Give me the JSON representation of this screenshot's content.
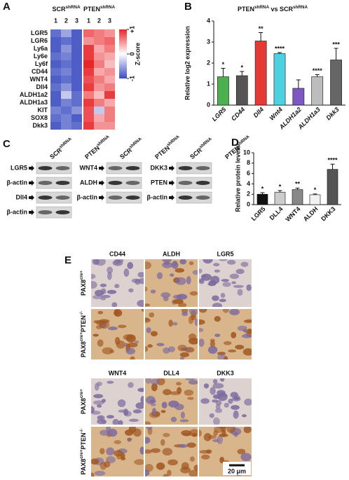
{
  "chart_data": [
    {
      "type": "heatmap",
      "panel": "A",
      "groups": [
        [
          {
            "text": "SCR"
          },
          {
            "text": "shRNA",
            "sup": true
          }
        ],
        [
          {
            "text": "PTEN"
          },
          {
            "text": "shRNA",
            "sup": true
          }
        ]
      ],
      "columns": [
        "1",
        "2",
        "3",
        "1",
        "2",
        "3"
      ],
      "rows": [
        "LGR5",
        "LGR6",
        "Ly6a",
        "Ly6e",
        "Ly6f",
        "CD44",
        "WNT4",
        "Dll4",
        "ALDH1a2",
        "ALDH1a3",
        "KIT",
        "SOX8",
        "Dkk3"
      ],
      "values": [
        [
          -0.8,
          -0.5,
          -0.9,
          0.7,
          0.6,
          0.5
        ],
        [
          -0.9,
          -0.8,
          -0.9,
          0.5,
          0.6,
          0.7
        ],
        [
          -0.9,
          -0.6,
          -0.9,
          0.9,
          0.4,
          0.6
        ],
        [
          -0.8,
          -0.7,
          -0.9,
          0.9,
          0.5,
          0.4
        ],
        [
          -0.9,
          -0.8,
          -0.9,
          1.0,
          0.6,
          0.3
        ],
        [
          -0.8,
          -0.7,
          -0.9,
          0.9,
          0.4,
          0.5
        ],
        [
          -0.9,
          -0.8,
          -0.9,
          0.8,
          0.6,
          0.4
        ],
        [
          -0.8,
          -0.6,
          -0.9,
          0.9,
          0.5,
          0.6
        ],
        [
          -0.9,
          -0.3,
          -0.8,
          0.6,
          0.3,
          0.9
        ],
        [
          -0.9,
          -0.7,
          -0.8,
          0.9,
          0.6,
          0.4
        ],
        [
          -0.7,
          -0.8,
          -0.6,
          0.8,
          -0.3,
          0.6
        ],
        [
          -0.8,
          -0.7,
          -0.9,
          0.8,
          0.4,
          0.6
        ],
        [
          -0.9,
          -0.7,
          -0.8,
          0.9,
          0.5,
          0.5
        ]
      ],
      "zlim": [
        -1,
        1
      ],
      "zticks": [
        {
          "value": 1,
          "label": "+1"
        },
        0,
        -1
      ],
      "zlabel": "Z-score",
      "colors": [
        "#3b4cc0",
        "#ffffff",
        "#e8262a"
      ]
    },
    {
      "type": "bar",
      "panel": "B",
      "title": [
        {
          "text": "PTEN"
        },
        {
          "text": "shRNA",
          "sup": true
        },
        {
          "text": " vs SCR"
        },
        {
          "text": "shRNA",
          "sup": true
        }
      ],
      "ylabel": "Relative log2 expression",
      "category_style": "italic",
      "categories": [
        "LGR5",
        "CD44",
        "Dll4",
        "Wnt4",
        "ALDH1a2",
        "ALDH1a3",
        "Dkk3"
      ],
      "values": [
        1.35,
        1.4,
        3.05,
        2.45,
        0.8,
        1.35,
        2.15
      ],
      "errors": [
        0.4,
        0.2,
        0.4,
        0.05,
        0.4,
        0.1,
        0.55
      ],
      "significance": [
        "*",
        "*",
        "**",
        "****",
        null,
        "****",
        "***"
      ],
      "colors": [
        "#4caf50",
        "#555555",
        "#e53935",
        "#4dd0e1",
        "#7e57c2",
        "#bdbdbd",
        "#666666"
      ],
      "ylim": [
        0,
        4
      ],
      "yticks": [
        0,
        1,
        2,
        3,
        4
      ]
    },
    {
      "type": "bar",
      "panel": "D",
      "ylabel": "Relative protein levels",
      "category_style": "normal",
      "categories": [
        "LGR5",
        "DLL4",
        "WNT4",
        "ALDH",
        "DKK3"
      ],
      "values": [
        2.0,
        2.4,
        2.9,
        1.9,
        6.8
      ],
      "errors": [
        0.3,
        0.3,
        0.3,
        0.15,
        1.0
      ],
      "significance": [
        "*",
        "*",
        "**",
        "*",
        "****"
      ],
      "colors": [
        "#111111",
        "#cccccc",
        "#888888",
        "#f2f2f2",
        "#555555"
      ],
      "ylim": [
        0,
        10
      ],
      "yticks": [
        0,
        2,
        4,
        6,
        8,
        10
      ]
    }
  ],
  "blots": {
    "panel": "C",
    "groups": [
      {
        "headers": [
          [
            {
              "text": "SCR"
            },
            {
              "text": "shRNA",
              "sup": true
            }
          ],
          [
            {
              "text": "PTEN"
            },
            {
              "text": "shRNA",
              "sup": true
            }
          ]
        ],
        "rows": [
          "LGR5",
          "β-actin",
          "Dll4",
          "β-actin"
        ]
      },
      {
        "headers": [
          [
            {
              "text": "SCR"
            },
            {
              "text": "shRNA",
              "sup": true
            }
          ],
          [
            {
              "text": "PTEN"
            },
            {
              "text": "shRNA",
              "sup": true
            }
          ]
        ],
        "rows": [
          "WNT4",
          "ALDH",
          "β-actin"
        ]
      },
      {
        "headers": [
          [
            {
              "text": "SCR"
            },
            {
              "text": "shRNA",
              "sup": true
            }
          ],
          [
            {
              "text": "PTEN"
            },
            {
              "text": "shRNA",
              "sup": true
            }
          ]
        ],
        "rows": [
          "DKK3",
          "PTEN",
          "β-actin"
        ]
      }
    ]
  },
  "ihc": {
    "panel": "E",
    "scale_bar": "20 μm",
    "blocks": [
      {
        "columns": [
          "CD44",
          "ALDH",
          "LGR5"
        ],
        "rows": [
          [
            {
              "text": "PAX8"
            },
            {
              "text": "cre+",
              "sup": true
            }
          ],
          [
            {
              "text": "PAX8"
            },
            {
              "text": "cre+",
              "sup": true
            },
            {
              "text": "PTEN"
            },
            {
              "text": "-/-",
              "sup": true
            }
          ]
        ]
      },
      {
        "columns": [
          "WNT4",
          "DLL4",
          "DKK3"
        ],
        "rows": [
          [
            {
              "text": "PAX8"
            },
            {
              "text": "cre+",
              "sup": true
            }
          ],
          [
            {
              "text": "PAX8"
            },
            {
              "text": "cre+",
              "sup": true
            },
            {
              "text": "PTEN"
            },
            {
              "text": "-/-",
              "sup": true
            }
          ]
        ]
      }
    ]
  }
}
